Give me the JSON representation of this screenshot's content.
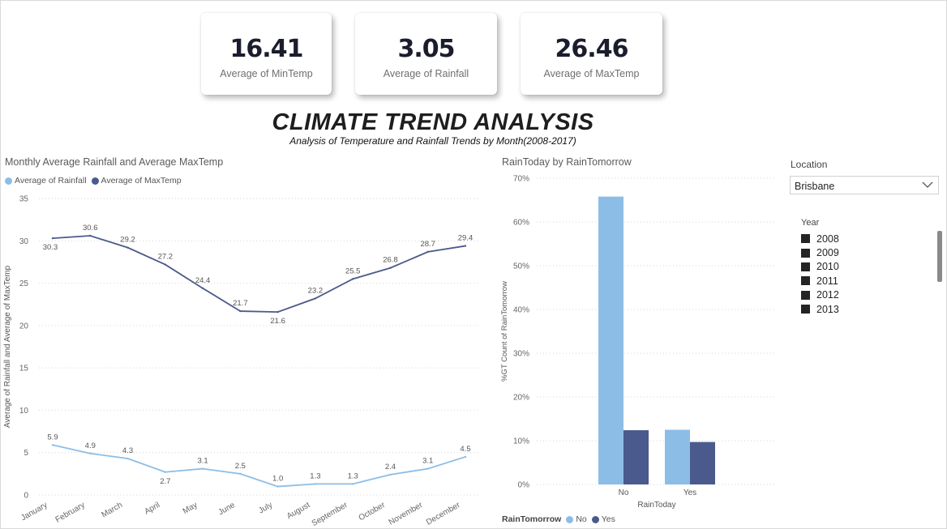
{
  "kpis": [
    {
      "value": "16.41",
      "label": "Average of MinTemp"
    },
    {
      "value": "3.05",
      "label": "Average of Rainfall"
    },
    {
      "value": "26.46",
      "label": "Average of MaxTemp"
    }
  ],
  "header": {
    "title": "CLIMATE TREND ANALYSIS",
    "subtitle": "Analysis of Temperature and Rainfall Trends by Month(2008-2017)"
  },
  "colors": {
    "light_blue": "#8cbde6",
    "dark_blue": "#4b5a8c"
  },
  "line_chart": {
    "title": "Monthly Average Rainfall and Average MaxTemp",
    "legend": [
      "Average of Rainfall",
      "Average of MaxTemp"
    ]
  },
  "bar_chart": {
    "title": "RainToday by RainTomorrow",
    "legend_title": "RainTomorrow",
    "legend": [
      "No",
      "Yes"
    ]
  },
  "chart_data": [
    {
      "type": "line",
      "title": "Monthly Average Rainfall and Average MaxTemp",
      "ylabel": "Average of Rainfall and Average of MaxTemp",
      "xlabel": "",
      "ylim": [
        0,
        35
      ],
      "yticks": [
        0,
        5,
        10,
        15,
        20,
        25,
        30,
        35
      ],
      "grid": true,
      "legend_position": "top-left",
      "categories": [
        "January",
        "February",
        "March",
        "April",
        "May",
        "June",
        "July",
        "August",
        "September",
        "October",
        "November",
        "December"
      ],
      "series": [
        {
          "name": "Average of Rainfall",
          "values": [
            5.9,
            4.9,
            4.3,
            2.7,
            3.1,
            2.5,
            1.0,
            1.3,
            1.3,
            2.4,
            3.1,
            4.5
          ],
          "labels": [
            "5.9",
            "4.9",
            "4.3",
            "2.7",
            "3.1",
            "2.5",
            "1.0",
            "1.3",
            "1.3",
            "2.4",
            "3.1",
            "4.5"
          ]
        },
        {
          "name": "Average of MaxTemp",
          "values": [
            30.3,
            30.6,
            29.2,
            27.2,
            24.4,
            21.7,
            21.6,
            23.2,
            25.5,
            26.8,
            28.7,
            29.4
          ],
          "labels": [
            "30.3",
            "30.6",
            "29.2",
            "27.2",
            "24.4",
            "21.7",
            "21.6",
            "23.2",
            "25.5",
            "26.8",
            "28.7",
            "29.4"
          ]
        }
      ]
    },
    {
      "type": "bar",
      "title": "RainToday by RainTomorrow",
      "xlabel": "RainToday",
      "ylabel": "%GT Count of RainTomorrow",
      "ylim": [
        0,
        70
      ],
      "yticks": [
        "0%",
        "10%",
        "20%",
        "30%",
        "40%",
        "50%",
        "60%",
        "70%"
      ],
      "grid": true,
      "legend_position": "bottom-left",
      "categories": [
        "No",
        "Yes"
      ],
      "series": [
        {
          "name": "No",
          "values": [
            65.8,
            12.5
          ]
        },
        {
          "name": "Yes",
          "values": [
            12.4,
            9.7
          ]
        }
      ]
    }
  ],
  "slicers": {
    "location": {
      "title": "Location",
      "selected": "Brisbane"
    },
    "year": {
      "title": "Year",
      "options": [
        "2008",
        "2009",
        "2010",
        "2011",
        "2012",
        "2013"
      ]
    }
  }
}
